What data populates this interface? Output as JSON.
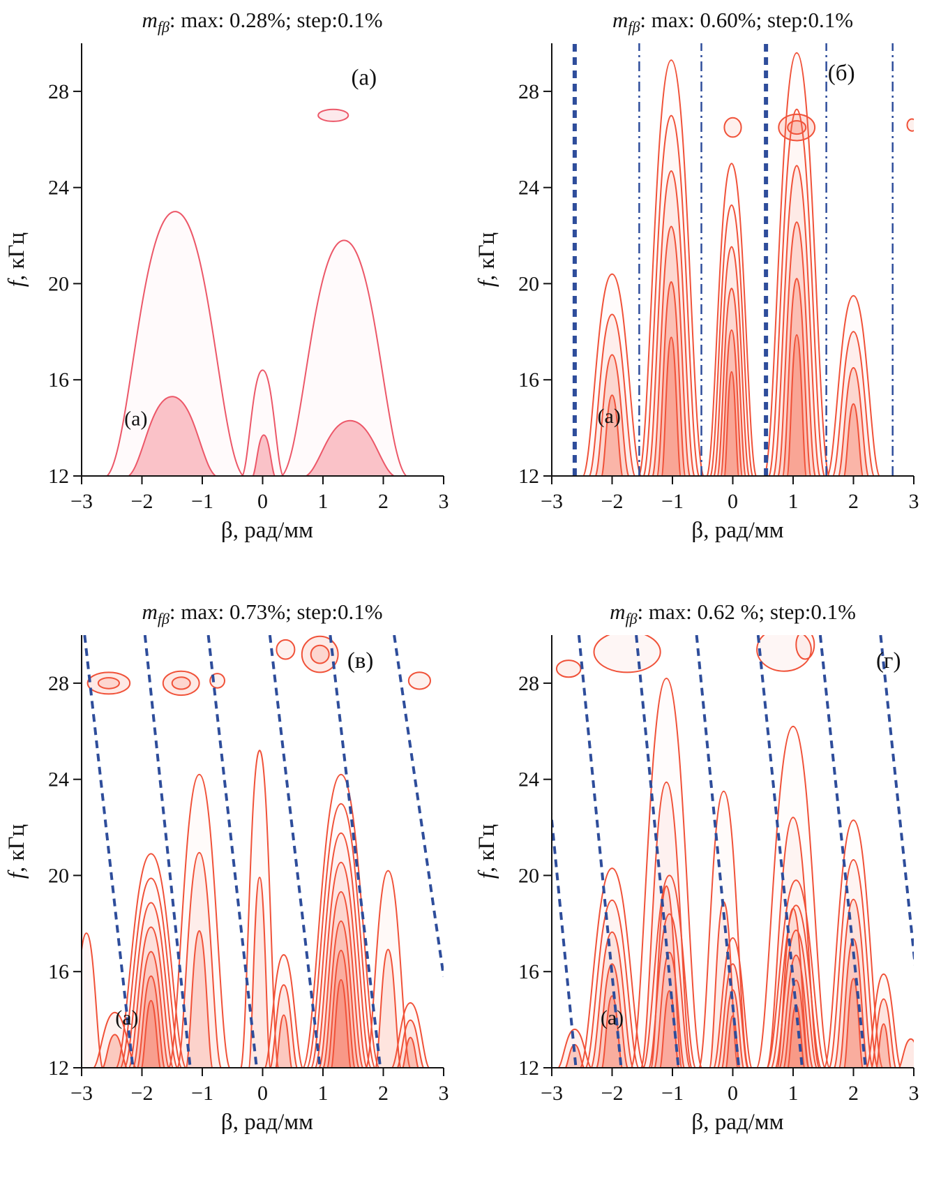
{
  "chart_data": {
    "type": "contour",
    "description_visible": "four contour maps of modulation depth vs wavenumber and frequency",
    "panels": [
      {
        "id": "a",
        "title": {
          "var": "m",
          "sub": "fβ",
          "rest": ": max: 0.28%; step:0.1%"
        },
        "corner_label": "(а)",
        "inner_label": "(а)",
        "xlabel": "β, рад/мм",
        "ylabel_var": "f",
        "ylabel_rest": ", кГц",
        "xlim": [
          -3,
          3
        ],
        "ylim": [
          12,
          30
        ],
        "xticks": [
          -3,
          -2,
          -1,
          0,
          1,
          2,
          3
        ],
        "yticks": [
          12,
          16,
          20,
          24,
          28
        ],
        "line_color": "#ec5768",
        "fill_rgb": "243,110,125",
        "blue_color": "#2e4d9b",
        "corner": {
          "fx": 0.78,
          "fy": 0.07
        },
        "inner": {
          "x": -2.1,
          "f": 14.1
        },
        "peaks": [
          {
            "c": -1.45,
            "w": 1.18,
            "top": 23.0,
            "n": 1,
            "f": 0.03
          },
          {
            "c": 1.35,
            "w": 1.08,
            "top": 21.8,
            "n": 1,
            "f": 0.03
          },
          {
            "c": 0.0,
            "w": 0.36,
            "top": 16.4,
            "n": 1,
            "f": 0.03
          },
          {
            "c": -1.5,
            "w": 0.78,
            "top": 15.3,
            "n": 1,
            "f": 0.4
          },
          {
            "c": 0.02,
            "w": 0.2,
            "top": 13.7,
            "n": 1,
            "f": 0.4
          },
          {
            "c": 1.45,
            "w": 0.8,
            "top": 14.3,
            "n": 1,
            "f": 0.4
          }
        ],
        "ellipses": [
          {
            "cx": 1.17,
            "cy": 27.0,
            "rx": 0.25,
            "ry": 0.25,
            "n": 1,
            "f": 0.15
          }
        ],
        "blue_lines": []
      },
      {
        "id": "b",
        "title": {
          "var": "m",
          "sub": "fβ",
          "rest": ": max: 0.60%; step:0.1%"
        },
        "corner_label": "(б)",
        "inner_label": "(а)",
        "xlabel": "β, рад/мм",
        "ylabel_var": "f",
        "ylabel_rest": ", кГц",
        "xlim": [
          -3,
          3
        ],
        "ylim": [
          12,
          30
        ],
        "xticks": [
          -3,
          -2,
          -1,
          0,
          1,
          2,
          3
        ],
        "yticks": [
          12,
          16,
          20,
          24,
          28
        ],
        "line_color": "#f05138",
        "fill_rgb": "246,105,80",
        "blue_color": "#2e4d9b",
        "corner": {
          "fx": 0.8,
          "fy": 0.06
        },
        "inner": {
          "x": -2.05,
          "f": 14.2
        },
        "peaks": [
          {
            "c": -2.0,
            "w": 0.5,
            "top": 20.4,
            "n": 4,
            "f": 0.3
          },
          {
            "c": -1.02,
            "w": 0.55,
            "top": 29.3,
            "n": 6,
            "f": 0.3
          },
          {
            "c": -0.02,
            "w": 0.42,
            "top": 25.0,
            "n": 6,
            "f": 0.3
          },
          {
            "c": 1.06,
            "w": 0.55,
            "top": 29.6,
            "n": 6,
            "f": 0.3
          },
          {
            "c": 2.0,
            "w": 0.45,
            "top": 19.5,
            "n": 4,
            "f": 0.3
          }
        ],
        "ellipses": [
          {
            "cx": 0.0,
            "cy": 26.5,
            "rx": 0.14,
            "ry": 0.4,
            "n": 1,
            "f": 0.1
          },
          {
            "cx": 1.06,
            "cy": 26.5,
            "rx": 0.3,
            "ry": 0.55,
            "n": 2,
            "f": 0.2
          },
          {
            "cx": 2.97,
            "cy": 26.6,
            "rx": 0.08,
            "ry": 0.25,
            "n": 1,
            "f": 0.1
          }
        ],
        "blue_lines": [
          {
            "x1": -2.62,
            "f1": 12,
            "x2": -2.62,
            "f2": 30,
            "style": "dashed",
            "w": 6
          },
          {
            "x1": -1.55,
            "f1": 12,
            "x2": -1.55,
            "f2": 30,
            "style": "dashdot",
            "w": 2.5
          },
          {
            "x1": -0.52,
            "f1": 12,
            "x2": -0.52,
            "f2": 30,
            "style": "dashdot",
            "w": 2.5
          },
          {
            "x1": 0.55,
            "f1": 12,
            "x2": 0.55,
            "f2": 30,
            "style": "dashed",
            "w": 6
          },
          {
            "x1": 1.55,
            "f1": 12,
            "x2": 1.55,
            "f2": 30,
            "style": "dashdot",
            "w": 2.5
          },
          {
            "x1": 2.65,
            "f1": 12,
            "x2": 2.65,
            "f2": 30,
            "style": "dashdot",
            "w": 2.5
          }
        ]
      },
      {
        "id": "v",
        "title": {
          "var": "m",
          "sub": "fβ",
          "rest": ": max: 0.73%; step:0.1%"
        },
        "corner_label": "(в)",
        "inner_label": "(а)",
        "xlabel": "β, рад/мм",
        "ylabel_var": "f",
        "ylabel_rest": ", кГц",
        "xlim": [
          -3,
          3
        ],
        "ylim": [
          12,
          30
        ],
        "xticks": [
          -3,
          -2,
          -1,
          0,
          1,
          2,
          3
        ],
        "yticks": [
          12,
          16,
          20,
          24,
          28
        ],
        "line_color": "#f05138",
        "fill_rgb": "246,105,80",
        "blue_color": "#2e4d9b",
        "corner": {
          "fx": 0.77,
          "fy": 0.05
        },
        "inner": {
          "x": -2.25,
          "f": 13.8
        },
        "peaks": [
          {
            "c": -2.92,
            "w": 0.28,
            "top": 17.6,
            "n": 1,
            "f": 0.05
          },
          {
            "c": -2.45,
            "w": 0.38,
            "top": 14.3,
            "n": 2,
            "f": 0.3
          },
          {
            "c": -1.85,
            "w": 0.6,
            "top": 20.9,
            "n": 7,
            "f": 0.3
          },
          {
            "c": -1.05,
            "w": 0.52,
            "top": 24.2,
            "n": 3,
            "f": 0.2
          },
          {
            "c": -0.05,
            "w": 0.32,
            "top": 25.2,
            "n": 2,
            "f": 0.12
          },
          {
            "c": 0.35,
            "w": 0.33,
            "top": 16.7,
            "n": 3,
            "f": 0.25
          },
          {
            "c": 1.3,
            "w": 0.65,
            "top": 24.2,
            "n": 8,
            "f": 0.3
          },
          {
            "c": 2.08,
            "w": 0.38,
            "top": 20.2,
            "n": 2,
            "f": 0.15
          },
          {
            "c": 2.45,
            "w": 0.33,
            "top": 14.7,
            "n": 3,
            "f": 0.3
          }
        ],
        "ellipses": [
          {
            "cx": -2.55,
            "cy": 28.0,
            "rx": 0.35,
            "ry": 0.45,
            "n": 2,
            "f": 0.15
          },
          {
            "cx": -1.35,
            "cy": 28.0,
            "rx": 0.3,
            "ry": 0.5,
            "n": 2,
            "f": 0.15
          },
          {
            "cx": -0.75,
            "cy": 28.1,
            "rx": 0.12,
            "ry": 0.3,
            "n": 1,
            "f": 0.1
          },
          {
            "cx": 0.95,
            "cy": 29.2,
            "rx": 0.3,
            "ry": 0.75,
            "n": 2,
            "f": 0.15
          },
          {
            "cx": 0.38,
            "cy": 29.4,
            "rx": 0.15,
            "ry": 0.4,
            "n": 1,
            "f": 0.1
          },
          {
            "cx": 2.6,
            "cy": 28.1,
            "rx": 0.18,
            "ry": 0.35,
            "n": 1,
            "f": 0.1
          }
        ],
        "blue_lines": [
          {
            "x1": -2.95,
            "f1": 30,
            "x2": -2.15,
            "f2": 12,
            "style": "dashed",
            "w": 4
          },
          {
            "x1": -1.95,
            "f1": 30,
            "x2": -1.2,
            "f2": 12,
            "style": "dashed",
            "w": 4
          },
          {
            "x1": -0.9,
            "f1": 30,
            "x2": -0.1,
            "f2": 12,
            "style": "dashed",
            "w": 4
          },
          {
            "x1": 0.12,
            "f1": 30,
            "x2": 0.95,
            "f2": 12,
            "style": "dashed",
            "w": 4
          },
          {
            "x1": 1.12,
            "f1": 30,
            "x2": 1.95,
            "f2": 12,
            "style": "dashed",
            "w": 4
          },
          {
            "x1": 2.18,
            "f1": 30,
            "x2": 3.0,
            "f2": 15.8,
            "style": "dashed",
            "w": 4
          }
        ]
      },
      {
        "id": "g",
        "title": {
          "var": "m",
          "sub": "fβ",
          "rest": ": max: 0.62 %; step:0.1%"
        },
        "corner_label": "(г)",
        "inner_label": "(а)",
        "xlabel": "β, рад/мм",
        "ylabel_var": "f",
        "ylabel_rest": ", кГц",
        "xlim": [
          -3,
          3
        ],
        "ylim": [
          12,
          30
        ],
        "xticks": [
          -3,
          -2,
          -1,
          0,
          1,
          2,
          3
        ],
        "yticks": [
          12,
          16,
          20,
          24,
          28
        ],
        "line_color": "#f05138",
        "fill_rgb": "246,105,80",
        "blue_color": "#2e4d9b",
        "corner": {
          "fx": 0.93,
          "fy": 0.05
        },
        "inner": {
          "x": -2.0,
          "f": 13.8
        },
        "peaks": [
          {
            "c": -2.62,
            "w": 0.3,
            "top": 13.6,
            "n": 2,
            "f": 0.3
          },
          {
            "c": -2.0,
            "w": 0.55,
            "top": 20.3,
            "n": 5,
            "f": 0.3
          },
          {
            "c": -1.1,
            "w": 0.6,
            "top": 28.2,
            "n": 3,
            "f": 0.15
          },
          {
            "c": -1.05,
            "w": 0.45,
            "top": 20.0,
            "n": 4,
            "f": 0.25
          },
          {
            "c": -0.15,
            "w": 0.42,
            "top": 23.5,
            "n": 2,
            "f": 0.1
          },
          {
            "c": 0.0,
            "w": 0.33,
            "top": 17.4,
            "n": 4,
            "f": 0.3
          },
          {
            "c": 1.0,
            "w": 0.62,
            "top": 26.2,
            "n": 3,
            "f": 0.12
          },
          {
            "c": 1.05,
            "w": 0.5,
            "top": 19.8,
            "n": 6,
            "f": 0.3
          },
          {
            "c": 2.0,
            "w": 0.5,
            "top": 22.3,
            "n": 5,
            "f": 0.3
          },
          {
            "c": 2.5,
            "w": 0.3,
            "top": 15.9,
            "n": 3,
            "f": 0.3
          },
          {
            "c": 2.95,
            "w": 0.22,
            "top": 13.2,
            "n": 1,
            "f": 0.15
          }
        ],
        "ellipses": [
          {
            "cx": -2.72,
            "cy": 28.6,
            "rx": 0.2,
            "ry": 0.35,
            "n": 1,
            "f": 0.1
          },
          {
            "cx": -1.75,
            "cy": 29.3,
            "rx": 0.55,
            "ry": 0.85,
            "n": 1,
            "f": 0.06
          },
          {
            "cx": 0.85,
            "cy": 29.4,
            "rx": 0.45,
            "ry": 0.9,
            "n": 1,
            "f": 0.06
          },
          {
            "cx": 1.2,
            "cy": 29.6,
            "rx": 0.15,
            "ry": 0.6,
            "n": 1,
            "f": 0.06
          }
        ],
        "blue_lines": [
          {
            "x1": -3.3,
            "f1": 30,
            "x2": -2.6,
            "f2": 12,
            "style": "dashed",
            "w": 4
          },
          {
            "x1": -2.55,
            "f1": 30,
            "x2": -1.85,
            "f2": 12,
            "style": "dashed",
            "w": 4
          },
          {
            "x1": -1.6,
            "f1": 30,
            "x2": -0.9,
            "f2": 12,
            "style": "dashed",
            "w": 4
          },
          {
            "x1": -0.6,
            "f1": 30,
            "x2": 0.1,
            "f2": 12,
            "style": "dashed",
            "w": 4
          },
          {
            "x1": 0.42,
            "f1": 30,
            "x2": 1.15,
            "f2": 12,
            "style": "dashed",
            "w": 4
          },
          {
            "x1": 1.45,
            "f1": 30,
            "x2": 2.2,
            "f2": 12,
            "style": "dashed",
            "w": 4
          },
          {
            "x1": 2.45,
            "f1": 30,
            "x2": 3.2,
            "f2": 12,
            "style": "dashed",
            "w": 4
          }
        ]
      }
    ]
  }
}
